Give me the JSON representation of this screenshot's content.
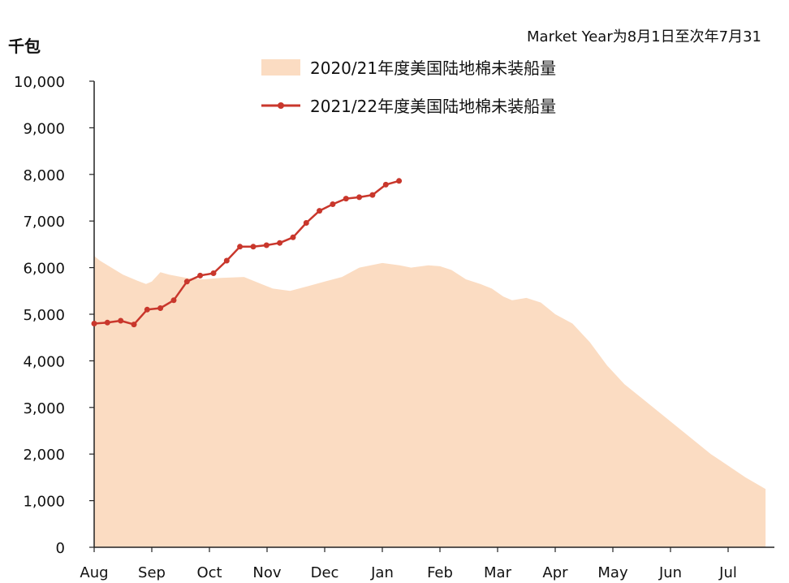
{
  "chart_data": {
    "type": "area",
    "y_unit": "千包",
    "note": "Market Year为8月1日至次年7月31",
    "categories": [
      "Aug",
      "Sep",
      "Oct",
      "Nov",
      "Dec",
      "Jan",
      "Feb",
      "Mar",
      "Apr",
      "May",
      "Jun",
      "Jul"
    ],
    "ylim": [
      0,
      10000
    ],
    "yticks": [
      0,
      1000,
      2000,
      3000,
      4000,
      5000,
      6000,
      7000,
      8000,
      9000,
      10000
    ],
    "ytick_labels": [
      "0",
      "1,000",
      "2,000",
      "3,000",
      "4,000",
      "5,000",
      "6,000",
      "7,000",
      "8,000",
      "9,000",
      "10,000"
    ],
    "xlim": [
      0,
      11.65
    ],
    "grid": false,
    "legend_position": "top",
    "series": [
      {
        "name": "2020/21年度美国陆地棉未装船量",
        "style": "area",
        "color": "#fbdcc2",
        "x": [
          0.0,
          0.1,
          0.3,
          0.5,
          0.75,
          0.9,
          1.0,
          1.15,
          1.3,
          1.6,
          1.9,
          2.2,
          2.6,
          2.9,
          3.1,
          3.4,
          3.7,
          4.0,
          4.3,
          4.6,
          5.0,
          5.3,
          5.5,
          5.8,
          6.0,
          6.2,
          6.45,
          6.7,
          6.9,
          7.1,
          7.25,
          7.5,
          7.75,
          8.0,
          8.3,
          8.6,
          8.9,
          9.2,
          9.5,
          9.8,
          10.1,
          10.4,
          10.7,
          11.0,
          11.3,
          11.65
        ],
        "y": [
          6250,
          6150,
          6000,
          5850,
          5720,
          5650,
          5700,
          5900,
          5850,
          5780,
          5750,
          5780,
          5800,
          5650,
          5550,
          5500,
          5600,
          5700,
          5800,
          6000,
          6100,
          6050,
          6000,
          6050,
          6030,
          5950,
          5750,
          5650,
          5550,
          5380,
          5300,
          5350,
          5250,
          5000,
          4800,
          4400,
          3900,
          3500,
          3200,
          2900,
          2600,
          2300,
          2000,
          1750,
          1500,
          1250
        ]
      },
      {
        "name": "2021/22年度美国陆地棉未装船量",
        "style": "line",
        "color": "#c9372c",
        "x": [
          0.0,
          0.23,
          0.46,
          0.69,
          0.92,
          1.15,
          1.38,
          1.61,
          1.84,
          2.07,
          2.3,
          2.53,
          2.76,
          2.99,
          3.22,
          3.45,
          3.68,
          3.91,
          4.14,
          4.37,
          4.6,
          4.83,
          5.06,
          5.29
        ],
        "y": [
          4800,
          4820,
          4860,
          4780,
          5100,
          5130,
          5300,
          5700,
          5830,
          5880,
          6150,
          6450,
          6450,
          6480,
          6530,
          6650,
          6960,
          7220,
          7360,
          7480,
          7510,
          7560,
          7780,
          7860
        ]
      }
    ]
  }
}
